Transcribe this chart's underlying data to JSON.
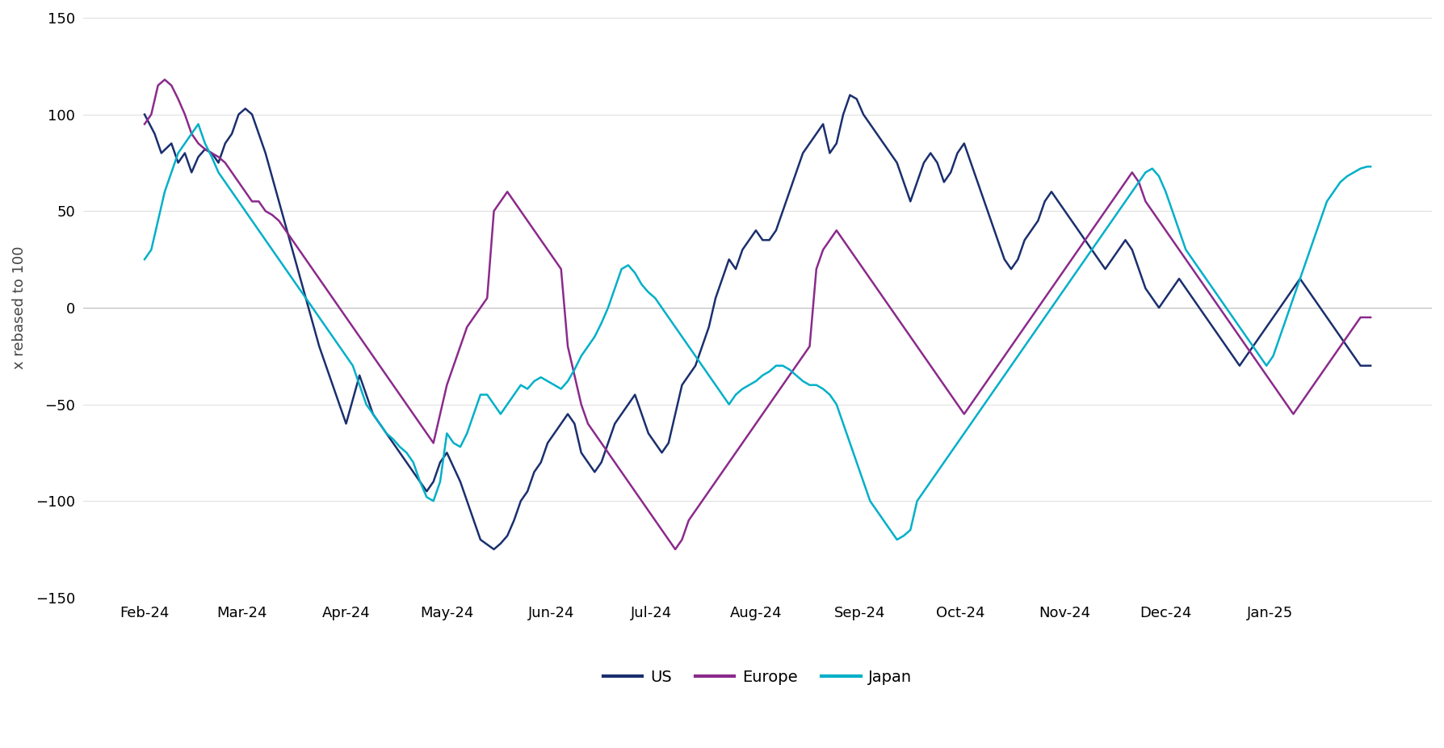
{
  "title": "",
  "ylabel": "x rebased to 100",
  "ylim": [
    -150,
    150
  ],
  "yticks": [
    -150,
    -100,
    -50,
    0,
    50,
    100,
    150
  ],
  "colors": {
    "US": "#1a2f6e",
    "Europe": "#8b2a8b",
    "Japan": "#00b0c8"
  },
  "legend_labels": [
    "US",
    "Europe",
    "Japan"
  ],
  "background_color": "#ffffff",
  "line_width": 1.8,
  "x_tick_labels": [
    "Feb-24",
    "Mar-24",
    "Apr-24",
    "May-24",
    "Jun-24",
    "Jul-24",
    "Aug-24",
    "Sep-24",
    "Oct-24",
    "Nov-24",
    "Dec-24",
    "Jan-25"
  ],
  "us_keypoints": [
    [
      0,
      100
    ],
    [
      3,
      90
    ],
    [
      5,
      80
    ],
    [
      8,
      85
    ],
    [
      10,
      75
    ],
    [
      12,
      80
    ],
    [
      14,
      70
    ],
    [
      16,
      78
    ],
    [
      18,
      82
    ],
    [
      20,
      80
    ],
    [
      22,
      75
    ],
    [
      24,
      85
    ],
    [
      26,
      90
    ],
    [
      28,
      100
    ],
    [
      30,
      103
    ],
    [
      32,
      100
    ],
    [
      36,
      80
    ],
    [
      40,
      55
    ],
    [
      44,
      30
    ],
    [
      48,
      5
    ],
    [
      52,
      -20
    ],
    [
      56,
      -40
    ],
    [
      60,
      -60
    ],
    [
      64,
      -35
    ],
    [
      68,
      -55
    ],
    [
      72,
      -65
    ],
    [
      76,
      -75
    ],
    [
      80,
      -85
    ],
    [
      82,
      -90
    ],
    [
      84,
      -95
    ],
    [
      86,
      -90
    ],
    [
      88,
      -80
    ],
    [
      90,
      -75
    ],
    [
      94,
      -90
    ],
    [
      96,
      -100
    ],
    [
      100,
      -120
    ],
    [
      104,
      -125
    ],
    [
      106,
      -122
    ],
    [
      108,
      -118
    ],
    [
      110,
      -110
    ],
    [
      112,
      -100
    ],
    [
      114,
      -95
    ],
    [
      116,
      -85
    ],
    [
      118,
      -80
    ],
    [
      120,
      -70
    ],
    [
      122,
      -65
    ],
    [
      124,
      -60
    ],
    [
      126,
      -55
    ],
    [
      128,
      -60
    ],
    [
      130,
      -75
    ],
    [
      132,
      -80
    ],
    [
      134,
      -85
    ],
    [
      136,
      -80
    ],
    [
      138,
      -70
    ],
    [
      140,
      -60
    ],
    [
      142,
      -55
    ],
    [
      144,
      -50
    ],
    [
      146,
      -45
    ],
    [
      148,
      -55
    ],
    [
      150,
      -65
    ],
    [
      152,
      -70
    ],
    [
      154,
      -75
    ],
    [
      156,
      -70
    ],
    [
      158,
      -55
    ],
    [
      160,
      -40
    ],
    [
      162,
      -35
    ],
    [
      164,
      -30
    ],
    [
      166,
      -20
    ],
    [
      168,
      -10
    ],
    [
      170,
      5
    ],
    [
      172,
      15
    ],
    [
      174,
      25
    ],
    [
      176,
      20
    ],
    [
      178,
      30
    ],
    [
      180,
      35
    ],
    [
      182,
      40
    ],
    [
      184,
      35
    ],
    [
      186,
      35
    ],
    [
      188,
      40
    ],
    [
      190,
      50
    ],
    [
      192,
      60
    ],
    [
      194,
      70
    ],
    [
      196,
      80
    ],
    [
      198,
      85
    ],
    [
      200,
      90
    ],
    [
      202,
      95
    ],
    [
      204,
      80
    ],
    [
      206,
      85
    ],
    [
      208,
      100
    ],
    [
      210,
      110
    ],
    [
      212,
      108
    ],
    [
      214,
      100
    ],
    [
      216,
      95
    ],
    [
      218,
      90
    ],
    [
      220,
      85
    ],
    [
      222,
      80
    ],
    [
      224,
      75
    ],
    [
      226,
      65
    ],
    [
      228,
      55
    ],
    [
      230,
      65
    ],
    [
      232,
      75
    ],
    [
      234,
      80
    ],
    [
      236,
      75
    ],
    [
      238,
      65
    ],
    [
      240,
      70
    ],
    [
      242,
      80
    ],
    [
      244,
      85
    ],
    [
      246,
      75
    ],
    [
      248,
      65
    ],
    [
      250,
      55
    ],
    [
      252,
      45
    ],
    [
      254,
      35
    ],
    [
      256,
      25
    ],
    [
      258,
      20
    ],
    [
      260,
      25
    ],
    [
      262,
      35
    ],
    [
      264,
      40
    ],
    [
      266,
      45
    ],
    [
      268,
      55
    ],
    [
      270,
      60
    ],
    [
      272,
      55
    ],
    [
      274,
      50
    ],
    [
      276,
      45
    ],
    [
      278,
      40
    ],
    [
      280,
      35
    ],
    [
      282,
      30
    ],
    [
      284,
      25
    ],
    [
      286,
      20
    ],
    [
      288,
      25
    ],
    [
      290,
      30
    ],
    [
      292,
      35
    ],
    [
      294,
      30
    ],
    [
      296,
      20
    ],
    [
      298,
      10
    ],
    [
      300,
      5
    ],
    [
      302,
      0
    ],
    [
      304,
      5
    ],
    [
      306,
      10
    ],
    [
      308,
      15
    ],
    [
      310,
      10
    ],
    [
      312,
      5
    ],
    [
      314,
      0
    ],
    [
      316,
      -5
    ],
    [
      318,
      -10
    ],
    [
      320,
      -15
    ],
    [
      322,
      -20
    ],
    [
      324,
      -25
    ],
    [
      326,
      -30
    ],
    [
      328,
      -25
    ],
    [
      330,
      -20
    ],
    [
      332,
      -15
    ],
    [
      334,
      -10
    ],
    [
      336,
      -5
    ],
    [
      338,
      0
    ],
    [
      340,
      5
    ],
    [
      342,
      10
    ],
    [
      344,
      15
    ],
    [
      346,
      10
    ],
    [
      348,
      5
    ],
    [
      350,
      0
    ],
    [
      352,
      -5
    ],
    [
      354,
      -10
    ],
    [
      356,
      -15
    ],
    [
      358,
      -20
    ],
    [
      360,
      -25
    ],
    [
      362,
      -30
    ],
    [
      364,
      -30
    ]
  ],
  "europe_keypoints": [
    [
      0,
      95
    ],
    [
      2,
      100
    ],
    [
      4,
      115
    ],
    [
      6,
      118
    ],
    [
      8,
      115
    ],
    [
      10,
      108
    ],
    [
      12,
      100
    ],
    [
      14,
      90
    ],
    [
      16,
      85
    ],
    [
      18,
      82
    ],
    [
      20,
      80
    ],
    [
      22,
      78
    ],
    [
      24,
      75
    ],
    [
      26,
      70
    ],
    [
      28,
      65
    ],
    [
      30,
      60
    ],
    [
      32,
      55
    ],
    [
      34,
      55
    ],
    [
      36,
      50
    ],
    [
      38,
      48
    ],
    [
      40,
      45
    ],
    [
      42,
      40
    ],
    [
      44,
      35
    ],
    [
      46,
      30
    ],
    [
      48,
      25
    ],
    [
      50,
      20
    ],
    [
      52,
      15
    ],
    [
      54,
      10
    ],
    [
      56,
      5
    ],
    [
      58,
      0
    ],
    [
      60,
      -5
    ],
    [
      62,
      -10
    ],
    [
      64,
      -15
    ],
    [
      66,
      -20
    ],
    [
      68,
      -25
    ],
    [
      70,
      -30
    ],
    [
      72,
      -35
    ],
    [
      74,
      -40
    ],
    [
      76,
      -45
    ],
    [
      78,
      -50
    ],
    [
      80,
      -55
    ],
    [
      82,
      -60
    ],
    [
      84,
      -65
    ],
    [
      86,
      -70
    ],
    [
      88,
      -55
    ],
    [
      90,
      -40
    ],
    [
      92,
      -30
    ],
    [
      94,
      -20
    ],
    [
      96,
      -10
    ],
    [
      98,
      -5
    ],
    [
      100,
      0
    ],
    [
      102,
      5
    ],
    [
      104,
      50
    ],
    [
      106,
      55
    ],
    [
      108,
      60
    ],
    [
      110,
      55
    ],
    [
      112,
      50
    ],
    [
      114,
      45
    ],
    [
      116,
      40
    ],
    [
      118,
      35
    ],
    [
      120,
      30
    ],
    [
      122,
      25
    ],
    [
      124,
      20
    ],
    [
      126,
      -20
    ],
    [
      128,
      -35
    ],
    [
      130,
      -50
    ],
    [
      132,
      -60
    ],
    [
      134,
      -65
    ],
    [
      136,
      -70
    ],
    [
      138,
      -75
    ],
    [
      140,
      -80
    ],
    [
      142,
      -85
    ],
    [
      144,
      -90
    ],
    [
      146,
      -95
    ],
    [
      148,
      -100
    ],
    [
      150,
      -105
    ],
    [
      152,
      -110
    ],
    [
      154,
      -115
    ],
    [
      156,
      -120
    ],
    [
      158,
      -125
    ],
    [
      160,
      -120
    ],
    [
      162,
      -110
    ],
    [
      164,
      -105
    ],
    [
      166,
      -100
    ],
    [
      168,
      -95
    ],
    [
      170,
      -90
    ],
    [
      172,
      -85
    ],
    [
      174,
      -80
    ],
    [
      176,
      -75
    ],
    [
      178,
      -70
    ],
    [
      180,
      -65
    ],
    [
      182,
      -60
    ],
    [
      184,
      -55
    ],
    [
      186,
      -50
    ],
    [
      188,
      -45
    ],
    [
      190,
      -40
    ],
    [
      192,
      -35
    ],
    [
      194,
      -30
    ],
    [
      196,
      -25
    ],
    [
      198,
      -20
    ],
    [
      200,
      20
    ],
    [
      202,
      30
    ],
    [
      204,
      35
    ],
    [
      206,
      40
    ],
    [
      208,
      35
    ],
    [
      210,
      30
    ],
    [
      212,
      25
    ],
    [
      214,
      20
    ],
    [
      216,
      15
    ],
    [
      218,
      10
    ],
    [
      220,
      5
    ],
    [
      222,
      0
    ],
    [
      224,
      -5
    ],
    [
      226,
      -10
    ],
    [
      228,
      -15
    ],
    [
      230,
      -20
    ],
    [
      232,
      -25
    ],
    [
      234,
      -30
    ],
    [
      236,
      -35
    ],
    [
      238,
      -40
    ],
    [
      240,
      -45
    ],
    [
      242,
      -50
    ],
    [
      244,
      -55
    ],
    [
      246,
      -50
    ],
    [
      248,
      -45
    ],
    [
      250,
      -40
    ],
    [
      252,
      -35
    ],
    [
      254,
      -30
    ],
    [
      256,
      -25
    ],
    [
      258,
      -20
    ],
    [
      260,
      -15
    ],
    [
      262,
      -10
    ],
    [
      264,
      -5
    ],
    [
      266,
      0
    ],
    [
      268,
      5
    ],
    [
      270,
      10
    ],
    [
      272,
      15
    ],
    [
      274,
      20
    ],
    [
      276,
      25
    ],
    [
      278,
      30
    ],
    [
      280,
      35
    ],
    [
      282,
      40
    ],
    [
      284,
      45
    ],
    [
      286,
      50
    ],
    [
      288,
      55
    ],
    [
      290,
      60
    ],
    [
      292,
      65
    ],
    [
      294,
      70
    ],
    [
      296,
      65
    ],
    [
      298,
      55
    ],
    [
      300,
      50
    ],
    [
      302,
      45
    ],
    [
      304,
      40
    ],
    [
      306,
      35
    ],
    [
      308,
      30
    ],
    [
      310,
      25
    ],
    [
      312,
      20
    ],
    [
      314,
      15
    ],
    [
      316,
      10
    ],
    [
      318,
      5
    ],
    [
      320,
      0
    ],
    [
      322,
      -5
    ],
    [
      324,
      -10
    ],
    [
      326,
      -15
    ],
    [
      328,
      -20
    ],
    [
      330,
      -25
    ],
    [
      332,
      -30
    ],
    [
      334,
      -35
    ],
    [
      336,
      -40
    ],
    [
      338,
      -45
    ],
    [
      340,
      -50
    ],
    [
      342,
      -55
    ],
    [
      344,
      -50
    ],
    [
      346,
      -45
    ],
    [
      348,
      -40
    ],
    [
      350,
      -35
    ],
    [
      352,
      -30
    ],
    [
      354,
      -25
    ],
    [
      356,
      -20
    ],
    [
      358,
      -15
    ],
    [
      360,
      -10
    ],
    [
      362,
      -5
    ],
    [
      364,
      -5
    ]
  ],
  "japan_keypoints": [
    [
      0,
      25
    ],
    [
      2,
      30
    ],
    [
      4,
      45
    ],
    [
      6,
      60
    ],
    [
      8,
      70
    ],
    [
      10,
      80
    ],
    [
      12,
      85
    ],
    [
      14,
      90
    ],
    [
      16,
      95
    ],
    [
      18,
      85
    ],
    [
      20,
      78
    ],
    [
      22,
      70
    ],
    [
      24,
      65
    ],
    [
      26,
      60
    ],
    [
      28,
      55
    ],
    [
      30,
      50
    ],
    [
      32,
      45
    ],
    [
      34,
      40
    ],
    [
      36,
      35
    ],
    [
      38,
      30
    ],
    [
      40,
      25
    ],
    [
      42,
      20
    ],
    [
      44,
      15
    ],
    [
      46,
      10
    ],
    [
      48,
      5
    ],
    [
      50,
      0
    ],
    [
      52,
      -5
    ],
    [
      54,
      -10
    ],
    [
      56,
      -15
    ],
    [
      58,
      -20
    ],
    [
      60,
      -25
    ],
    [
      62,
      -30
    ],
    [
      64,
      -40
    ],
    [
      66,
      -50
    ],
    [
      68,
      -55
    ],
    [
      70,
      -60
    ],
    [
      72,
      -65
    ],
    [
      74,
      -68
    ],
    [
      76,
      -72
    ],
    [
      78,
      -75
    ],
    [
      80,
      -80
    ],
    [
      82,
      -90
    ],
    [
      84,
      -98
    ],
    [
      86,
      -100
    ],
    [
      88,
      -90
    ],
    [
      90,
      -65
    ],
    [
      92,
      -70
    ],
    [
      94,
      -72
    ],
    [
      96,
      -65
    ],
    [
      98,
      -55
    ],
    [
      100,
      -45
    ],
    [
      102,
      -45
    ],
    [
      104,
      -50
    ],
    [
      106,
      -55
    ],
    [
      108,
      -50
    ],
    [
      110,
      -45
    ],
    [
      112,
      -40
    ],
    [
      114,
      -42
    ],
    [
      116,
      -38
    ],
    [
      118,
      -36
    ],
    [
      120,
      -38
    ],
    [
      122,
      -40
    ],
    [
      124,
      -42
    ],
    [
      126,
      -38
    ],
    [
      128,
      -32
    ],
    [
      130,
      -25
    ],
    [
      132,
      -20
    ],
    [
      134,
      -15
    ],
    [
      136,
      -8
    ],
    [
      138,
      0
    ],
    [
      140,
      10
    ],
    [
      142,
      20
    ],
    [
      144,
      22
    ],
    [
      146,
      18
    ],
    [
      148,
      12
    ],
    [
      150,
      8
    ],
    [
      152,
      5
    ],
    [
      154,
      0
    ],
    [
      156,
      -5
    ],
    [
      158,
      -10
    ],
    [
      160,
      -15
    ],
    [
      162,
      -20
    ],
    [
      164,
      -25
    ],
    [
      166,
      -30
    ],
    [
      168,
      -35
    ],
    [
      170,
      -40
    ],
    [
      172,
      -45
    ],
    [
      174,
      -50
    ],
    [
      176,
      -45
    ],
    [
      178,
      -42
    ],
    [
      180,
      -40
    ],
    [
      182,
      -38
    ],
    [
      184,
      -35
    ],
    [
      186,
      -33
    ],
    [
      188,
      -30
    ],
    [
      190,
      -30
    ],
    [
      192,
      -32
    ],
    [
      194,
      -35
    ],
    [
      196,
      -38
    ],
    [
      198,
      -40
    ],
    [
      200,
      -40
    ],
    [
      202,
      -42
    ],
    [
      204,
      -45
    ],
    [
      206,
      -50
    ],
    [
      208,
      -60
    ],
    [
      210,
      -70
    ],
    [
      212,
      -80
    ],
    [
      214,
      -90
    ],
    [
      216,
      -100
    ],
    [
      218,
      -105
    ],
    [
      220,
      -110
    ],
    [
      222,
      -115
    ],
    [
      224,
      -120
    ],
    [
      226,
      -118
    ],
    [
      228,
      -115
    ],
    [
      230,
      -100
    ],
    [
      232,
      -95
    ],
    [
      234,
      -90
    ],
    [
      236,
      -85
    ],
    [
      238,
      -80
    ],
    [
      240,
      -75
    ],
    [
      242,
      -70
    ],
    [
      244,
      -65
    ],
    [
      246,
      -60
    ],
    [
      248,
      -55
    ],
    [
      250,
      -50
    ],
    [
      252,
      -45
    ],
    [
      254,
      -40
    ],
    [
      256,
      -35
    ],
    [
      258,
      -30
    ],
    [
      260,
      -25
    ],
    [
      262,
      -20
    ],
    [
      264,
      -15
    ],
    [
      266,
      -10
    ],
    [
      268,
      -5
    ],
    [
      270,
      0
    ],
    [
      272,
      5
    ],
    [
      274,
      10
    ],
    [
      276,
      15
    ],
    [
      278,
      20
    ],
    [
      280,
      25
    ],
    [
      282,
      30
    ],
    [
      284,
      35
    ],
    [
      286,
      40
    ],
    [
      288,
      45
    ],
    [
      290,
      50
    ],
    [
      292,
      55
    ],
    [
      294,
      60
    ],
    [
      296,
      65
    ],
    [
      298,
      70
    ],
    [
      300,
      72
    ],
    [
      302,
      68
    ],
    [
      304,
      60
    ],
    [
      306,
      50
    ],
    [
      308,
      40
    ],
    [
      310,
      30
    ],
    [
      312,
      25
    ],
    [
      314,
      20
    ],
    [
      316,
      15
    ],
    [
      318,
      10
    ],
    [
      320,
      5
    ],
    [
      322,
      0
    ],
    [
      324,
      -5
    ],
    [
      326,
      -10
    ],
    [
      328,
      -15
    ],
    [
      330,
      -20
    ],
    [
      332,
      -25
    ],
    [
      334,
      -30
    ],
    [
      336,
      -25
    ],
    [
      338,
      -15
    ],
    [
      340,
      -5
    ],
    [
      342,
      5
    ],
    [
      344,
      15
    ],
    [
      346,
      25
    ],
    [
      348,
      35
    ],
    [
      350,
      45
    ],
    [
      352,
      55
    ],
    [
      354,
      60
    ],
    [
      356,
      65
    ],
    [
      358,
      68
    ],
    [
      360,
      70
    ],
    [
      362,
      72
    ],
    [
      364,
      73
    ]
  ]
}
